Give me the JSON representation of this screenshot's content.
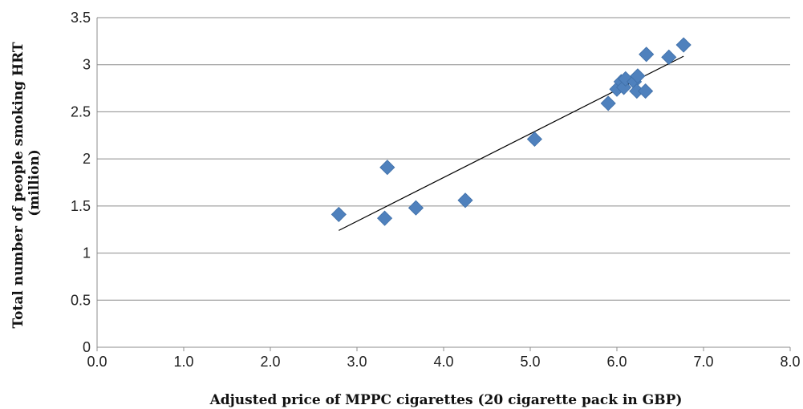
{
  "chart_data": {
    "type": "scatter",
    "title": "",
    "xlabel": "Adjusted price of MPPC cigarettes (20 cigarette pack in GBP)",
    "ylabel_lines": [
      "Total number of people smoking HRT",
      "(million)"
    ],
    "xlim": [
      0,
      8
    ],
    "ylim": [
      0,
      3.5
    ],
    "x_ticks": [
      "0.0",
      "1.0",
      "2.0",
      "3.0",
      "4.0",
      "5.0",
      "6.0",
      "7.0",
      "8.0"
    ],
    "y_ticks": [
      "0",
      "0.5",
      "1",
      "1.5",
      "2",
      "2.5",
      "3",
      "3.5"
    ],
    "grid": "horizontal",
    "marker": "diamond",
    "marker_color": "#4f81bd",
    "trendline_color": "#000000",
    "series": [
      {
        "points": [
          {
            "x": 2.79,
            "y": 1.41
          },
          {
            "x": 3.32,
            "y": 1.37
          },
          {
            "x": 3.35,
            "y": 1.91
          },
          {
            "x": 3.68,
            "y": 1.48
          },
          {
            "x": 4.25,
            "y": 1.56
          },
          {
            "x": 5.05,
            "y": 2.21
          },
          {
            "x": 5.9,
            "y": 2.59
          },
          {
            "x": 6.0,
            "y": 2.74
          },
          {
            "x": 6.05,
            "y": 2.82
          },
          {
            "x": 6.08,
            "y": 2.76
          },
          {
            "x": 6.1,
            "y": 2.85
          },
          {
            "x": 6.2,
            "y": 2.82
          },
          {
            "x": 6.24,
            "y": 2.88
          },
          {
            "x": 6.23,
            "y": 2.72
          },
          {
            "x": 6.33,
            "y": 2.72
          },
          {
            "x": 6.34,
            "y": 3.11
          },
          {
            "x": 6.6,
            "y": 3.08
          },
          {
            "x": 6.77,
            "y": 3.21
          }
        ]
      }
    ],
    "trendline": {
      "x": [
        2.79,
        6.77
      ],
      "y": [
        1.24,
        3.09
      ]
    }
  }
}
